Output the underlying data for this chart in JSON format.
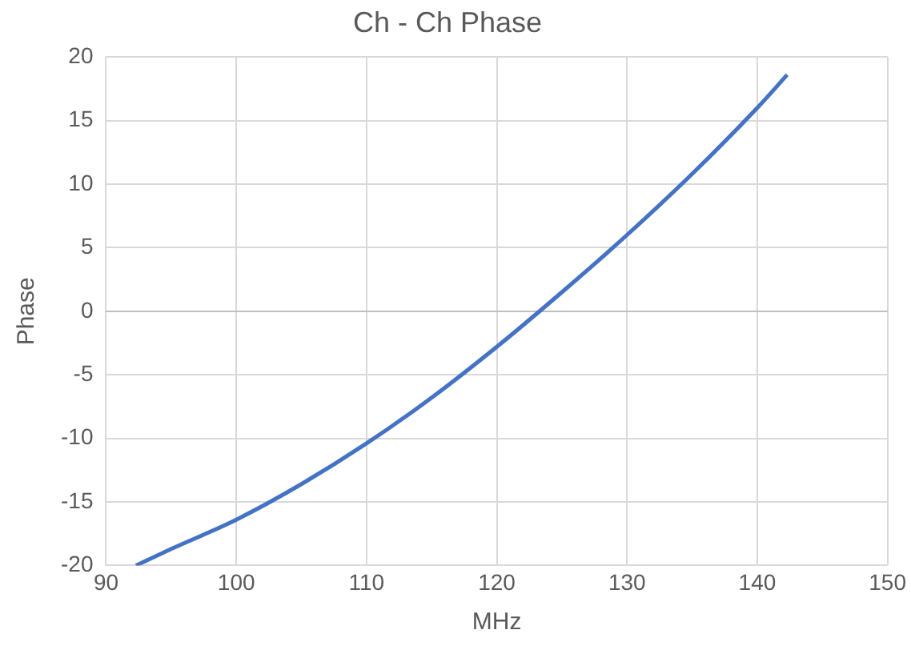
{
  "chart_data": {
    "type": "line",
    "title": "Ch - Ch Phase",
    "xlabel": "MHz",
    "ylabel": "Phase",
    "x": [
      92.3,
      95,
      100,
      105,
      110,
      115,
      120,
      125,
      130,
      135,
      140,
      142.3
    ],
    "series": [
      {
        "color": "#4472c4",
        "values": [
          -20,
          -18.7,
          -16.4,
          -13.6,
          -10.4,
          -6.8,
          -2.8,
          1.5,
          6.0,
          10.8,
          16.0,
          18.6
        ]
      }
    ],
    "xlim": [
      90,
      150
    ],
    "xticks": [
      90,
      100,
      110,
      120,
      130,
      140,
      150
    ],
    "ylim": [
      -20,
      20
    ],
    "yticks": [
      -20,
      -15,
      -10,
      -5,
      0,
      5,
      10,
      15,
      20
    ],
    "grid": true,
    "legend": false,
    "marker": "none",
    "line_style": "solid"
  }
}
